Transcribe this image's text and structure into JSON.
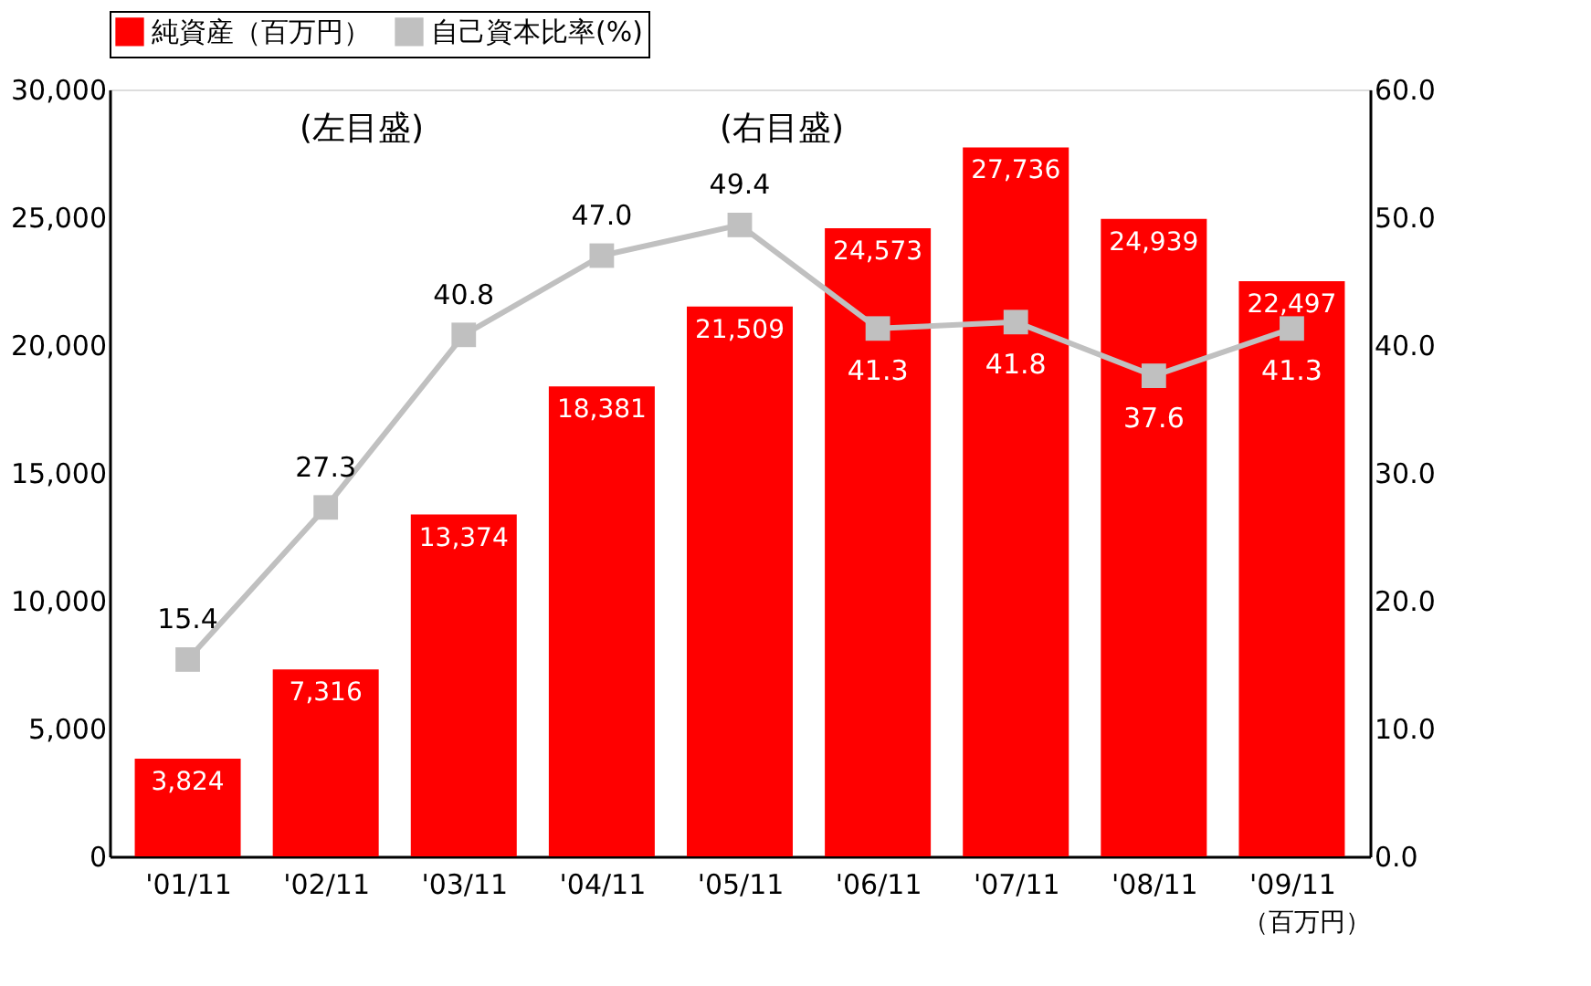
{
  "chart_data": {
    "type": "bar",
    "categories": [
      "'01/11",
      "'02/11",
      "'03/11",
      "'04/11",
      "'05/11",
      "'06/11",
      "'07/11",
      "'08/11",
      "'09/11"
    ],
    "series": [
      {
        "name": "純資産（百万円）",
        "color": "#ff0000",
        "values": [
          3824,
          7316,
          13374,
          18381,
          21509,
          24573,
          27736,
          24939,
          22497
        ]
      },
      {
        "name": "自己資本比率(%)",
        "type": "line",
        "axis": "y2",
        "color": "#c0c0c0",
        "marker": "square",
        "values": [
          15.4,
          27.3,
          40.8,
          47.0,
          49.4,
          41.3,
          41.8,
          37.6,
          41.3
        ]
      }
    ],
    "ylim": [
      0,
      30000
    ],
    "yticks": [
      {
        "value": 0,
        "label": "0"
      },
      {
        "value": 5000,
        "label": "5,000"
      },
      {
        "value": 10000,
        "label": "10,000"
      },
      {
        "value": 15000,
        "label": "15,000"
      },
      {
        "value": 20000,
        "label": "20,000"
      },
      {
        "value": 25000,
        "label": "25,000"
      },
      {
        "value": 30000,
        "label": "30,000"
      }
    ],
    "y2lim": [
      0,
      60
    ],
    "y2ticks": [
      {
        "value": 0,
        "label": "0.0"
      },
      {
        "value": 10,
        "label": "10.0"
      },
      {
        "value": 20,
        "label": "20.0"
      },
      {
        "value": 30,
        "label": "30.0"
      },
      {
        "value": 40,
        "label": "40.0"
      },
      {
        "value": 50,
        "label": "50.0"
      },
      {
        "value": 60,
        "label": "60.0"
      }
    ],
    "value_labels": [
      [
        "3,824",
        "7,316",
        "13,374",
        "18,381",
        "21,509",
        "24,573",
        "27,736",
        "24,939",
        "22,497"
      ],
      [
        "15.4",
        "27.3",
        "40.8",
        "47.0",
        "49.4",
        "41.3",
        "41.8",
        "37.6",
        "41.3"
      ]
    ],
    "annotations": [
      "(左目盛)",
      "(右目盛)",
      "（百万円）"
    ],
    "legend": "top",
    "grid": false
  }
}
